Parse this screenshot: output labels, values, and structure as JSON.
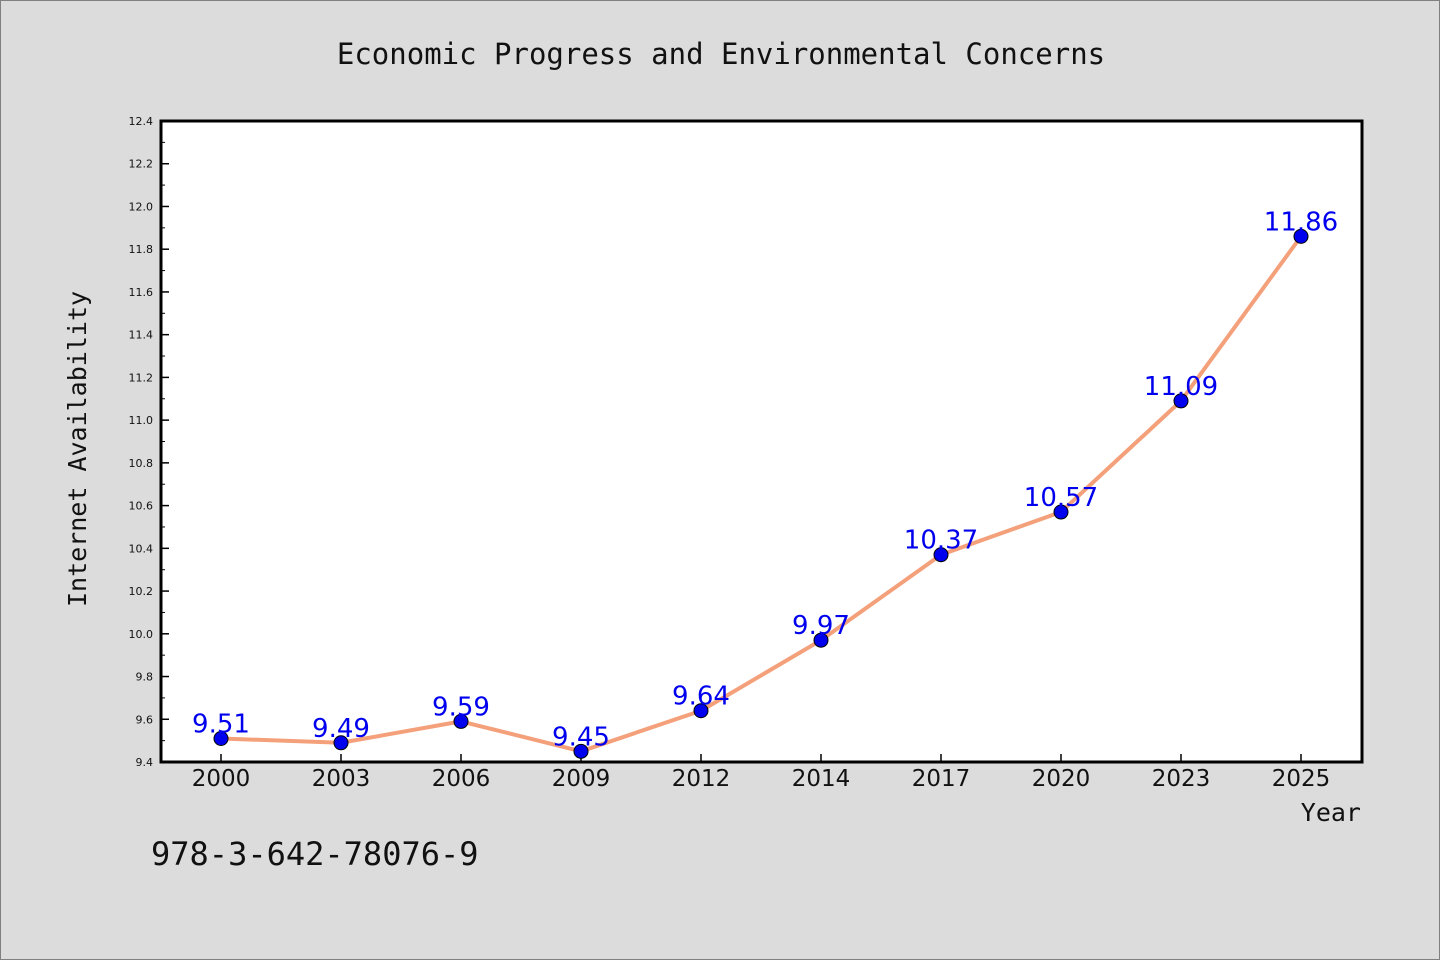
{
  "chart_data": {
    "type": "line",
    "title": "Economic Progress and Environmental Concerns",
    "xlabel": "Year",
    "ylabel": "Internet Availability",
    "categories": [
      "2000",
      "2003",
      "2006",
      "2009",
      "2012",
      "2014",
      "2017",
      "2020",
      "2023",
      "2025"
    ],
    "series": [
      {
        "values": [
          9.51,
          9.49,
          9.59,
          9.45,
          9.64,
          9.97,
          10.37,
          10.57,
          11.09,
          11.86
        ],
        "labels": [
          "9.51",
          "9.49",
          "9.59",
          "9.45",
          "9.64",
          "9.97",
          "10.37",
          "10.57",
          "11.09",
          "11.86"
        ],
        "line_color": "#f4a07a",
        "marker_color": "#0000ee"
      }
    ],
    "ylim": [
      9.4,
      12.4
    ],
    "yticks": [
      "9.4",
      "9.6",
      "9.8",
      "10.0",
      "10.2",
      "10.4",
      "10.6",
      "10.8",
      "11.0",
      "11.2",
      "11.4",
      "11.6",
      "11.8",
      "12.0",
      "12.2",
      "12.4"
    ],
    "grid": false,
    "legend": "none",
    "label_color": "#0000ee"
  },
  "footer": {
    "isbn": "978-3-642-78076-9"
  }
}
